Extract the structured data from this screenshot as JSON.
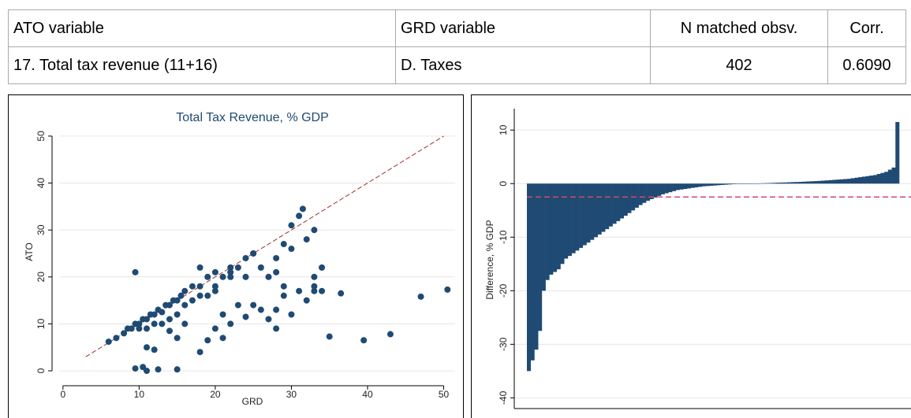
{
  "table": {
    "header": [
      "ATO variable",
      "GRD variable",
      "N matched obsv.",
      "Corr."
    ],
    "rows": [
      [
        "17. Total tax revenue (11+16)",
        "D. Taxes",
        "402",
        "0.6090"
      ]
    ]
  },
  "chart_data": [
    {
      "type": "scatter",
      "title": "Total Tax Revenue, % GDP",
      "x_label": "GRD",
      "y_label": "ATO",
      "color": "#1f4a73",
      "line_color": "#a0302e",
      "xlim": [
        -0.5,
        51.5
      ],
      "ylim": [
        -2,
        53
      ],
      "xticks": [
        0,
        10,
        20,
        30,
        40,
        50
      ],
      "yticks": [
        0,
        10,
        20,
        30,
        40,
        50
      ],
      "grid": true,
      "diagonal": [
        3,
        50
      ],
      "x": [
        6,
        7,
        8,
        8.5,
        9,
        9.5,
        10,
        10.5,
        11,
        11.5,
        12,
        12.5,
        13,
        13.5,
        14,
        14.5,
        15,
        15.5,
        16,
        17,
        18,
        18,
        19,
        20,
        21,
        22,
        23,
        24,
        25,
        10,
        11,
        12,
        13,
        14,
        15,
        16,
        17,
        18,
        19,
        20,
        22,
        24,
        9.5,
        9.5,
        10.5,
        11,
        12.5,
        15,
        11,
        12,
        14,
        15,
        16,
        18,
        19,
        20,
        21,
        21,
        22,
        23,
        24,
        25,
        26,
        27,
        28,
        28,
        29,
        30,
        31,
        32,
        33,
        34,
        35,
        36.5,
        39.5,
        43,
        47,
        50.5,
        30,
        29,
        28,
        31.5,
        30,
        25,
        22,
        20,
        26,
        27,
        28,
        29,
        33,
        34,
        33,
        31,
        32,
        33
      ],
      "values": [
        6.2,
        7,
        8,
        9,
        9,
        10,
        10,
        11,
        11,
        12,
        12,
        13,
        12.5,
        14,
        14,
        15,
        15,
        16,
        17,
        18,
        18,
        22,
        20,
        21,
        20,
        21,
        22,
        24,
        25,
        9,
        9,
        10,
        10,
        11,
        12,
        14,
        15,
        16,
        16,
        17,
        22,
        20,
        21,
        0.5,
        0.8,
        0,
        0.3,
        0.3,
        5,
        4.5,
        8.5,
        7,
        10,
        4,
        6.5,
        9,
        7,
        12,
        10,
        14,
        11.5,
        14,
        13,
        11,
        9,
        13,
        16,
        12,
        17,
        15,
        20,
        22,
        7.3,
        16.5,
        6.5,
        7.8,
        15.8,
        17.3,
        26,
        27,
        24,
        34.5,
        31,
        25,
        20,
        18,
        22,
        20,
        21,
        18,
        18,
        17,
        17,
        33,
        28,
        30
      ]
    },
    {
      "type": "bar",
      "y_label": "Difference, % GDP",
      "color": "#1f4a73",
      "line_color": "#d04a6a",
      "ylim": [
        -42,
        14
      ],
      "yticks": [
        -40,
        -30,
        -20,
        -10,
        0,
        10
      ],
      "grid": true,
      "hline": -2.5,
      "values": [
        -35,
        -33,
        -31,
        -27.5,
        -20,
        -18,
        -17,
        -16.5,
        -16,
        -15,
        -14,
        -13.5,
        -13,
        -12.5,
        -12,
        -11.5,
        -11,
        -10.5,
        -10,
        -9.5,
        -9,
        -8.5,
        -8,
        -7.5,
        -7,
        -6.5,
        -6,
        -5.5,
        -5,
        -4.5,
        -4,
        -3.6,
        -3.2,
        -2.9,
        -2.6,
        -2.3,
        -2,
        -1.8,
        -1.6,
        -1.4,
        -1.2,
        -1.1,
        -1,
        -0.9,
        -0.8,
        -0.7,
        -0.6,
        -0.5,
        -0.45,
        -0.4,
        -0.35,
        -0.3,
        -0.25,
        -0.2,
        -0.15,
        -0.1,
        -0.08,
        -0.05,
        -0.03,
        -0.01,
        0.01,
        0.03,
        0.05,
        0.08,
        0.1,
        0.12,
        0.15,
        0.18,
        0.2,
        0.22,
        0.25,
        0.28,
        0.3,
        0.33,
        0.36,
        0.4,
        0.43,
        0.46,
        0.5,
        0.55,
        0.6,
        0.65,
        0.7,
        0.75,
        0.8,
        0.85,
        0.9,
        1,
        1.1,
        1.2,
        1.3,
        1.4,
        1.5,
        1.6,
        1.8,
        2,
        2.2,
        2.6,
        3,
        11.5
      ]
    }
  ]
}
